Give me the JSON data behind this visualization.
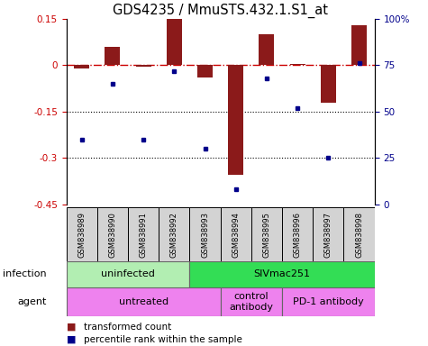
{
  "title": "GDS4235 / MmuSTS.432.1.S1_at",
  "samples": [
    "GSM838989",
    "GSM838990",
    "GSM838991",
    "GSM838992",
    "GSM838993",
    "GSM838994",
    "GSM838995",
    "GSM838996",
    "GSM838997",
    "GSM838998"
  ],
  "bar_values": [
    -0.01,
    0.06,
    -0.005,
    0.15,
    -0.04,
    -0.355,
    0.1,
    0.005,
    -0.12,
    0.13
  ],
  "dot_values": [
    35,
    65,
    35,
    72,
    30,
    8,
    68,
    52,
    25,
    76
  ],
  "ylim_left": [
    -0.45,
    0.15
  ],
  "ylim_right": [
    0,
    100
  ],
  "yticks_left": [
    0.15,
    0.0,
    -0.15,
    -0.3,
    -0.45
  ],
  "yticks_right": [
    100,
    75,
    50,
    25,
    0
  ],
  "bar_color": "#8B1A1A",
  "dot_color": "#00008B",
  "hline_color": "#CC0000",
  "dotgrid_color": "#000000",
  "infection_labels": [
    {
      "text": "uninfected",
      "start": 0,
      "end": 3,
      "color": "#B2EEB2"
    },
    {
      "text": "SIVmac251",
      "start": 4,
      "end": 9,
      "color": "#33DD55"
    }
  ],
  "agent_ranges": [
    {
      "text": "untreated",
      "start": 0,
      "end": 4
    },
    {
      "text": "control\nantibody",
      "start": 5,
      "end": 6
    },
    {
      "text": "PD-1 antibody",
      "start": 7,
      "end": 9
    }
  ],
  "agent_color": "#EE82EE",
  "sample_bg": "#D3D3D3",
  "infection_row_label": "infection",
  "agent_row_label": "agent",
  "background_color": "#FFFFFF",
  "title_fontsize": 10.5,
  "tick_fontsize": 7.5,
  "label_fontsize": 8,
  "sample_fontsize": 6,
  "legend_fontsize": 7.5
}
